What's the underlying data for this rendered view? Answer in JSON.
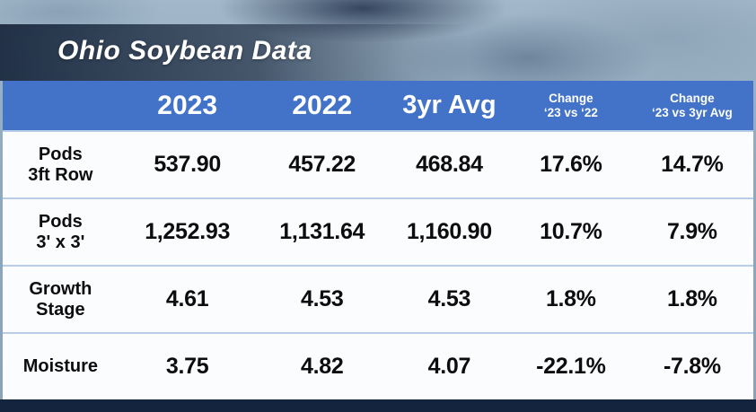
{
  "title": "Ohio Soybean Data",
  "colors": {
    "header_bg": "#4273c8",
    "header_text": "#ffffff",
    "row_bg": "#fbfcfe",
    "row_text": "#0d0d0d",
    "divider": "#b9cde6",
    "navy_bar": "#15243e",
    "backdrop": "#95adc2",
    "title_text": "#ffffff"
  },
  "table": {
    "headers": [
      "",
      "2023",
      "2022",
      "3yr Avg"
    ],
    "change_headers": [
      {
        "line1": "Change",
        "line2": "‘23 vs ‘22"
      },
      {
        "line1": "Change",
        "line2": "‘23 vs 3yr Avg"
      }
    ],
    "rows": [
      {
        "label1": "Pods",
        "label2": "3ft Row",
        "values": [
          "537.90",
          "457.22",
          "468.84",
          "17.6%",
          "14.7%"
        ]
      },
      {
        "label1": "Pods",
        "label2": "3' x 3'",
        "values": [
          "1,252.93",
          "1,131.64",
          "1,160.90",
          "10.7%",
          "7.9%"
        ]
      },
      {
        "label1": "Growth",
        "label2": "Stage",
        "values": [
          "4.61",
          "4.53",
          "4.53",
          "1.8%",
          "1.8%"
        ]
      },
      {
        "label1": "Moisture",
        "label2": "",
        "values": [
          "3.75",
          "4.82",
          "4.07",
          "-22.1%",
          "-7.8%"
        ]
      }
    ]
  },
  "chart_data": {
    "type": "table",
    "title": "Ohio Soybean Data",
    "columns": [
      "",
      "2023",
      "2022",
      "3yr Avg",
      "Change ‘23 vs ‘22",
      "Change ‘23 vs 3yr Avg"
    ],
    "rows": [
      [
        "Pods 3ft Row",
        "537.90",
        "457.22",
        "468.84",
        "17.6%",
        "14.7%"
      ],
      [
        "Pods 3' x 3'",
        "1,252.93",
        "1,131.64",
        "1,160.90",
        "10.7%",
        "7.9%"
      ],
      [
        "Growth Stage",
        "4.61",
        "4.53",
        "4.53",
        "1.8%",
        "1.8%"
      ],
      [
        "Moisture",
        "3.75",
        "4.82",
        "4.07",
        "-22.1%",
        "-7.8%"
      ]
    ]
  }
}
